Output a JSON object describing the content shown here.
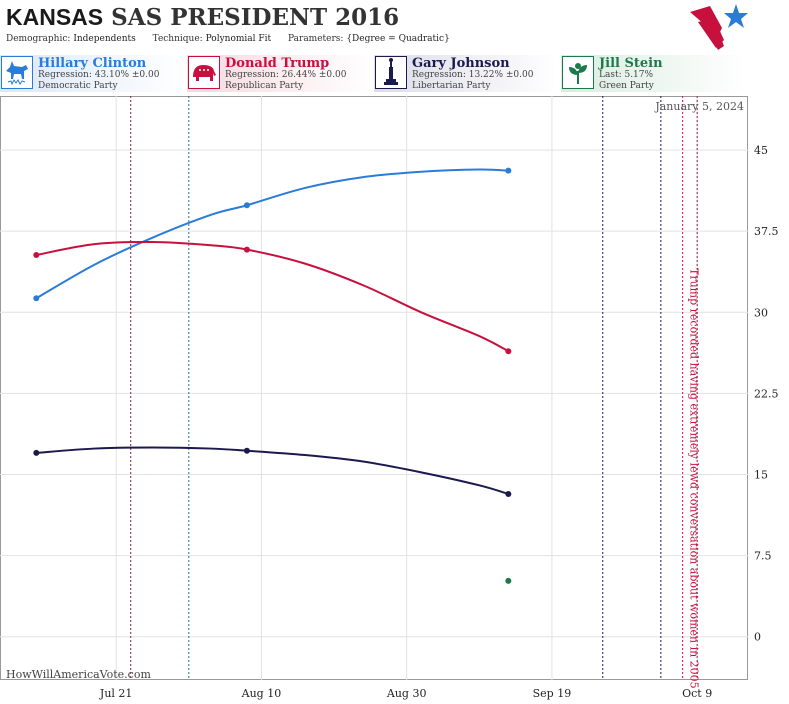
{
  "header": {
    "state": "KANSAS",
    "title_rest": "SAS PRESIDENT 2016",
    "demographic_label": "Demographic:",
    "demographic": "Independents",
    "technique_label": "Technique:",
    "technique": "Polynomial Fit",
    "parameters_label": "Parameters:",
    "parameters": "{Degree = Quadratic}"
  },
  "candidates": [
    {
      "name": "Hillary Clinton",
      "stat": "Regression: 43.10% ±0.00",
      "party": "Democratic Party",
      "color": "#2b7bd8",
      "icon": "donkey-icon"
    },
    {
      "name": "Donald Trump",
      "stat": "Regression: 26.44% ±0.00",
      "party": "Republican Party",
      "color": "#c8103e",
      "icon": "elephant-icon"
    },
    {
      "name": "Gary Johnson",
      "stat": "Regression: 13.22% ±0.00",
      "party": "Libertarian Party",
      "color": "#1a1a4e",
      "icon": "liberty-statue-icon"
    },
    {
      "name": "Jill Stein",
      "stat": "Last: 5.17%",
      "party": "Green Party",
      "color": "#1b7a4a",
      "icon": "leaf-flower-icon"
    }
  ],
  "date_label": "January 5, 2024",
  "footer": "HowWillAmericaVote.com",
  "chart_data": {
    "type": "line",
    "x_axis": {
      "min": "2016-07-05",
      "max": "2016-10-16",
      "ticks": [
        "2016-07-21",
        "2016-08-10",
        "2016-08-30",
        "2016-09-19",
        "2016-10-09"
      ],
      "tick_labels": [
        "Jul 21",
        "Aug 10",
        "Aug 30",
        "Sep 19",
        "Oct 9"
      ]
    },
    "y_axis": {
      "min": -4,
      "max": 50,
      "ticks": [
        0,
        7.5,
        15,
        22.5,
        30,
        37.5,
        45
      ],
      "tick_labels": [
        "0",
        "7.5",
        "15",
        "22.5",
        "30",
        "37.5",
        "45"
      ],
      "position": "right"
    },
    "grid": true,
    "series": [
      {
        "name": "Hillary Clinton",
        "color": "#2b7bd8",
        "x": [
          "2016-07-10",
          "2016-07-18",
          "2016-07-26",
          "2016-08-03",
          "2016-08-08",
          "2016-08-16",
          "2016-08-24",
          "2016-09-01",
          "2016-09-09",
          "2016-09-13"
        ],
        "y": [
          31.3,
          34.4,
          36.9,
          39.0,
          39.9,
          41.5,
          42.5,
          43.0,
          43.2,
          43.1
        ],
        "points": [
          {
            "x": "2016-07-10",
            "y": 31.3
          },
          {
            "x": "2016-08-08",
            "y": 39.9
          },
          {
            "x": "2016-09-13",
            "y": 43.1
          }
        ]
      },
      {
        "name": "Donald Trump",
        "color": "#c8103e",
        "x": [
          "2016-07-10",
          "2016-07-18",
          "2016-07-26",
          "2016-08-03",
          "2016-08-08",
          "2016-08-16",
          "2016-08-24",
          "2016-09-01",
          "2016-09-09",
          "2016-09-13"
        ],
        "y": [
          35.3,
          36.3,
          36.5,
          36.2,
          35.8,
          34.5,
          32.5,
          30.0,
          27.8,
          26.4
        ],
        "points": [
          {
            "x": "2016-07-10",
            "y": 35.3
          },
          {
            "x": "2016-08-08",
            "y": 35.8
          },
          {
            "x": "2016-09-13",
            "y": 26.4
          }
        ]
      },
      {
        "name": "Gary Johnson",
        "color": "#1a1a4e",
        "x": [
          "2016-07-10",
          "2016-07-18",
          "2016-07-26",
          "2016-08-03",
          "2016-08-08",
          "2016-08-16",
          "2016-08-24",
          "2016-09-01",
          "2016-09-09",
          "2016-09-13"
        ],
        "y": [
          17.0,
          17.4,
          17.5,
          17.4,
          17.2,
          16.8,
          16.2,
          15.2,
          14.0,
          13.2
        ],
        "points": [
          {
            "x": "2016-07-10",
            "y": 17.0
          },
          {
            "x": "2016-08-08",
            "y": 17.2
          },
          {
            "x": "2016-09-13",
            "y": 13.2
          }
        ]
      },
      {
        "name": "Jill Stein",
        "color": "#1b7a4a",
        "x": [],
        "y": [],
        "points": [
          {
            "x": "2016-09-13",
            "y": 5.17
          }
        ]
      }
    ],
    "event_lines": [
      {
        "date": "2016-07-23",
        "color": "#8b1a4a"
      },
      {
        "date": "2016-07-31",
        "color": "#2a6e8a"
      },
      {
        "date": "2016-09-26",
        "color": "#1a1a4e"
      },
      {
        "date": "2016-10-04",
        "color": "#1a1a4e"
      },
      {
        "date": "2016-10-07",
        "color": "#c8103e"
      },
      {
        "date": "2016-10-09",
        "color": "#8b1a4a"
      }
    ],
    "annotation": {
      "text": "Trump recorded having extremely lewd conversation about women in 2005",
      "date": "2016-10-07",
      "color": "#c8103e"
    }
  }
}
